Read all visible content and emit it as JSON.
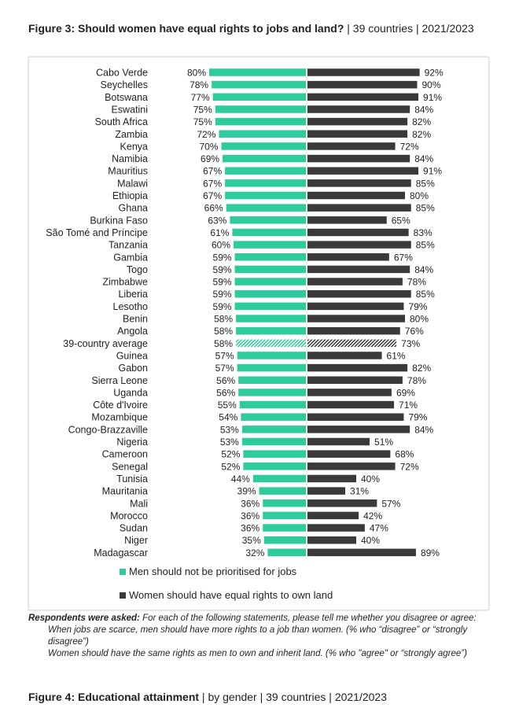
{
  "chart_data": {
    "type": "bar",
    "orientation": "horizontal-diverging",
    "title": "Figure 3: Should women have equal rights to jobs and land?",
    "subtitle": "| 39 countries | 2021/2023",
    "categories": [
      "Cabo Verde",
      "Seychelles",
      "Botswana",
      "Eswatini",
      "South Africa",
      "Zambia",
      "Kenya",
      "Namibia",
      "Mauritius",
      "Malawi",
      "Ethiopia",
      "Ghana",
      "Burkina Faso",
      "São Tomé and Príncipe",
      "Tanzania",
      "Gambia",
      "Togo",
      "Zimbabwe",
      "Liberia",
      "Lesotho",
      "Benin",
      "Angola",
      "39-country average",
      "Guinea",
      "Gabon",
      "Sierra Leone",
      "Uganda",
      "Côte d'Ivoire",
      "Mozambique",
      "Congo-Brazzaville",
      "Nigeria",
      "Cameroon",
      "Senegal",
      "Tunisia",
      "Mauritania",
      "Mali",
      "Morocco",
      "Sudan",
      "Niger",
      "Madagascar"
    ],
    "series": [
      {
        "name": "Men should not be prioritised for jobs",
        "color": "#2ecc9c",
        "side": "left",
        "values": [
          80,
          78,
          77,
          75,
          75,
          72,
          70,
          69,
          67,
          67,
          67,
          66,
          63,
          61,
          60,
          59,
          59,
          59,
          59,
          59,
          58,
          58,
          58,
          57,
          57,
          56,
          56,
          55,
          54,
          53,
          53,
          52,
          52,
          44,
          39,
          36,
          36,
          36,
          35,
          32
        ]
      },
      {
        "name": "Women should have equal rights to own land",
        "color": "#3a3a3a",
        "side": "right",
        "values": [
          92,
          90,
          91,
          84,
          82,
          82,
          72,
          84,
          91,
          85,
          80,
          85,
          65,
          83,
          85,
          67,
          84,
          78,
          85,
          79,
          80,
          76,
          73,
          61,
          82,
          78,
          69,
          71,
          79,
          84,
          51,
          68,
          72,
          40,
          31,
          57,
          42,
          47,
          40,
          89
        ]
      }
    ],
    "highlight_category": "39-country average",
    "highlight_style": "hatched",
    "value_format": "{v}%",
    "xlim": [
      0,
      100
    ],
    "legend_position": "bottom",
    "grid": false
  },
  "note": {
    "lead": "Respondents were asked:",
    "text": "For each of the following statements, please tell me whether you disagree or agree:",
    "item1": "When jobs are scarce, men should have more rights to a job than women. (% who “disagree” or “strongly disagree”)",
    "item2": "Women should have the same rights as men to own and inherit land. (% who \"agree\" or “strongly agree”)"
  },
  "next_figure": {
    "title": "Figure 4: Educational attainment",
    "subtitle": "| by gender | 39 countries | 2021/2023"
  }
}
